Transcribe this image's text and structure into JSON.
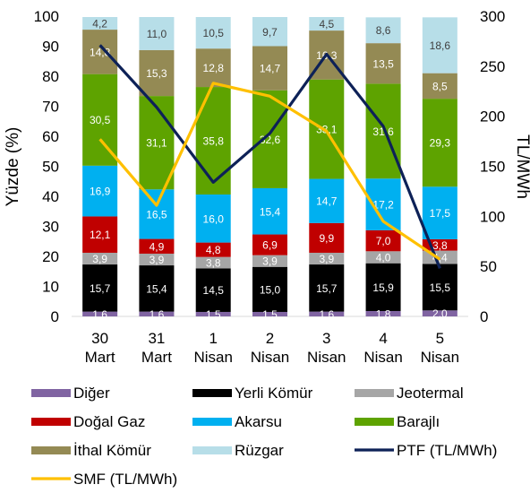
{
  "chart_data": {
    "type": "bar",
    "stacked": true,
    "categories": [
      [
        "30",
        "Mart"
      ],
      [
        "31",
        "Mart"
      ],
      [
        "1",
        "Nisan"
      ],
      [
        "2",
        "Nisan"
      ],
      [
        "3",
        "Nisan"
      ],
      [
        "4",
        "Nisan"
      ],
      [
        "5",
        "Nisan"
      ]
    ],
    "ylabel": "Yüzde (%)",
    "y2label": "TL/MWh",
    "ylim": [
      0,
      100
    ],
    "y2lim": [
      0,
      300
    ],
    "yticks": [
      0,
      10,
      20,
      30,
      40,
      50,
      60,
      70,
      80,
      90,
      100
    ],
    "y2ticks": [
      0,
      50,
      100,
      150,
      200,
      250,
      300
    ],
    "grid": false,
    "legend_position": "bottom",
    "series": [
      {
        "name": "Diğer",
        "color": "#8064a2",
        "values": [
          1.6,
          1.6,
          1.5,
          1.5,
          1.6,
          1.8,
          2.0
        ],
        "labels": [
          "1,6",
          "1,6",
          "1,5",
          "1,5",
          "1,6",
          "1,8",
          "2,0"
        ],
        "label_color": "#ffffff"
      },
      {
        "name": "Yerli Kömür",
        "color": "#000000",
        "values": [
          15.7,
          15.4,
          14.5,
          15.0,
          15.7,
          15.9,
          15.5
        ],
        "labels": [
          "15,7",
          "15,4",
          "14,5",
          "15,0",
          "15,7",
          "15,9",
          "15,5"
        ],
        "label_color": "#ffffff"
      },
      {
        "name": "Jeotermal",
        "color": "#a6a6a6",
        "values": [
          3.9,
          3.9,
          3.8,
          3.9,
          3.9,
          4.0,
          4.4
        ],
        "labels": [
          "3,9",
          "3,9",
          "3,8",
          "3,9",
          "3,9",
          "4,0",
          "4,4"
        ],
        "label_color": "#ffffff"
      },
      {
        "name": "Doğal Gaz",
        "color": "#c00000",
        "values": [
          12.1,
          4.9,
          4.8,
          6.9,
          9.9,
          7.0,
          3.8
        ],
        "labels": [
          "12,1",
          "4,9",
          "4,8",
          "6,9",
          "9,9",
          "7,0",
          "3,8"
        ],
        "label_color": "#ffffff"
      },
      {
        "name": "Akarsu",
        "color": "#00b0f0",
        "values": [
          16.9,
          16.5,
          16.0,
          15.4,
          14.7,
          17.2,
          17.5
        ],
        "labels": [
          "16,9",
          "16,5",
          "16,0",
          "15,4",
          "14,7",
          "17,2",
          "17,5"
        ],
        "label_color": "#ffffff"
      },
      {
        "name": "Barajlı",
        "color": "#5ea300",
        "values": [
          30.5,
          31.1,
          35.8,
          32.6,
          33.1,
          31.6,
          29.3
        ],
        "labels": [
          "30,5",
          "31,1",
          "35,8",
          "32,6",
          "33,1",
          "31,6",
          "29,3"
        ],
        "label_color": "#ffffff"
      },
      {
        "name": "İthal Kömür",
        "color": "#948a54",
        "values": [
          14.8,
          15.3,
          12.8,
          14.7,
          16.3,
          13.5,
          8.5
        ],
        "labels": [
          "14,8",
          "15,3",
          "12,8",
          "14,7",
          "16,3",
          "13,5",
          "8,5"
        ],
        "label_color": "#ffffff"
      },
      {
        "name": "Rüzgar",
        "color": "#b7dee8",
        "values": [
          4.2,
          11.0,
          10.5,
          9.7,
          4.5,
          8.6,
          18.6
        ],
        "labels": [
          "4,2",
          "11,0",
          "10,5",
          "9,7",
          "4,5",
          "8,6",
          "18,6"
        ],
        "label_color": "#404040"
      }
    ],
    "lines": [
      {
        "name": "PTF (TL/MWh)",
        "color": "#0d2157",
        "axis": "right",
        "values": [
          271,
          209,
          134,
          183,
          262,
          190,
          48
        ]
      },
      {
        "name": "SMF (TL/MWh)",
        "color": "#ffc000",
        "axis": "right",
        "values": [
          177,
          111,
          233,
          220,
          185,
          95,
          57
        ]
      }
    ]
  }
}
